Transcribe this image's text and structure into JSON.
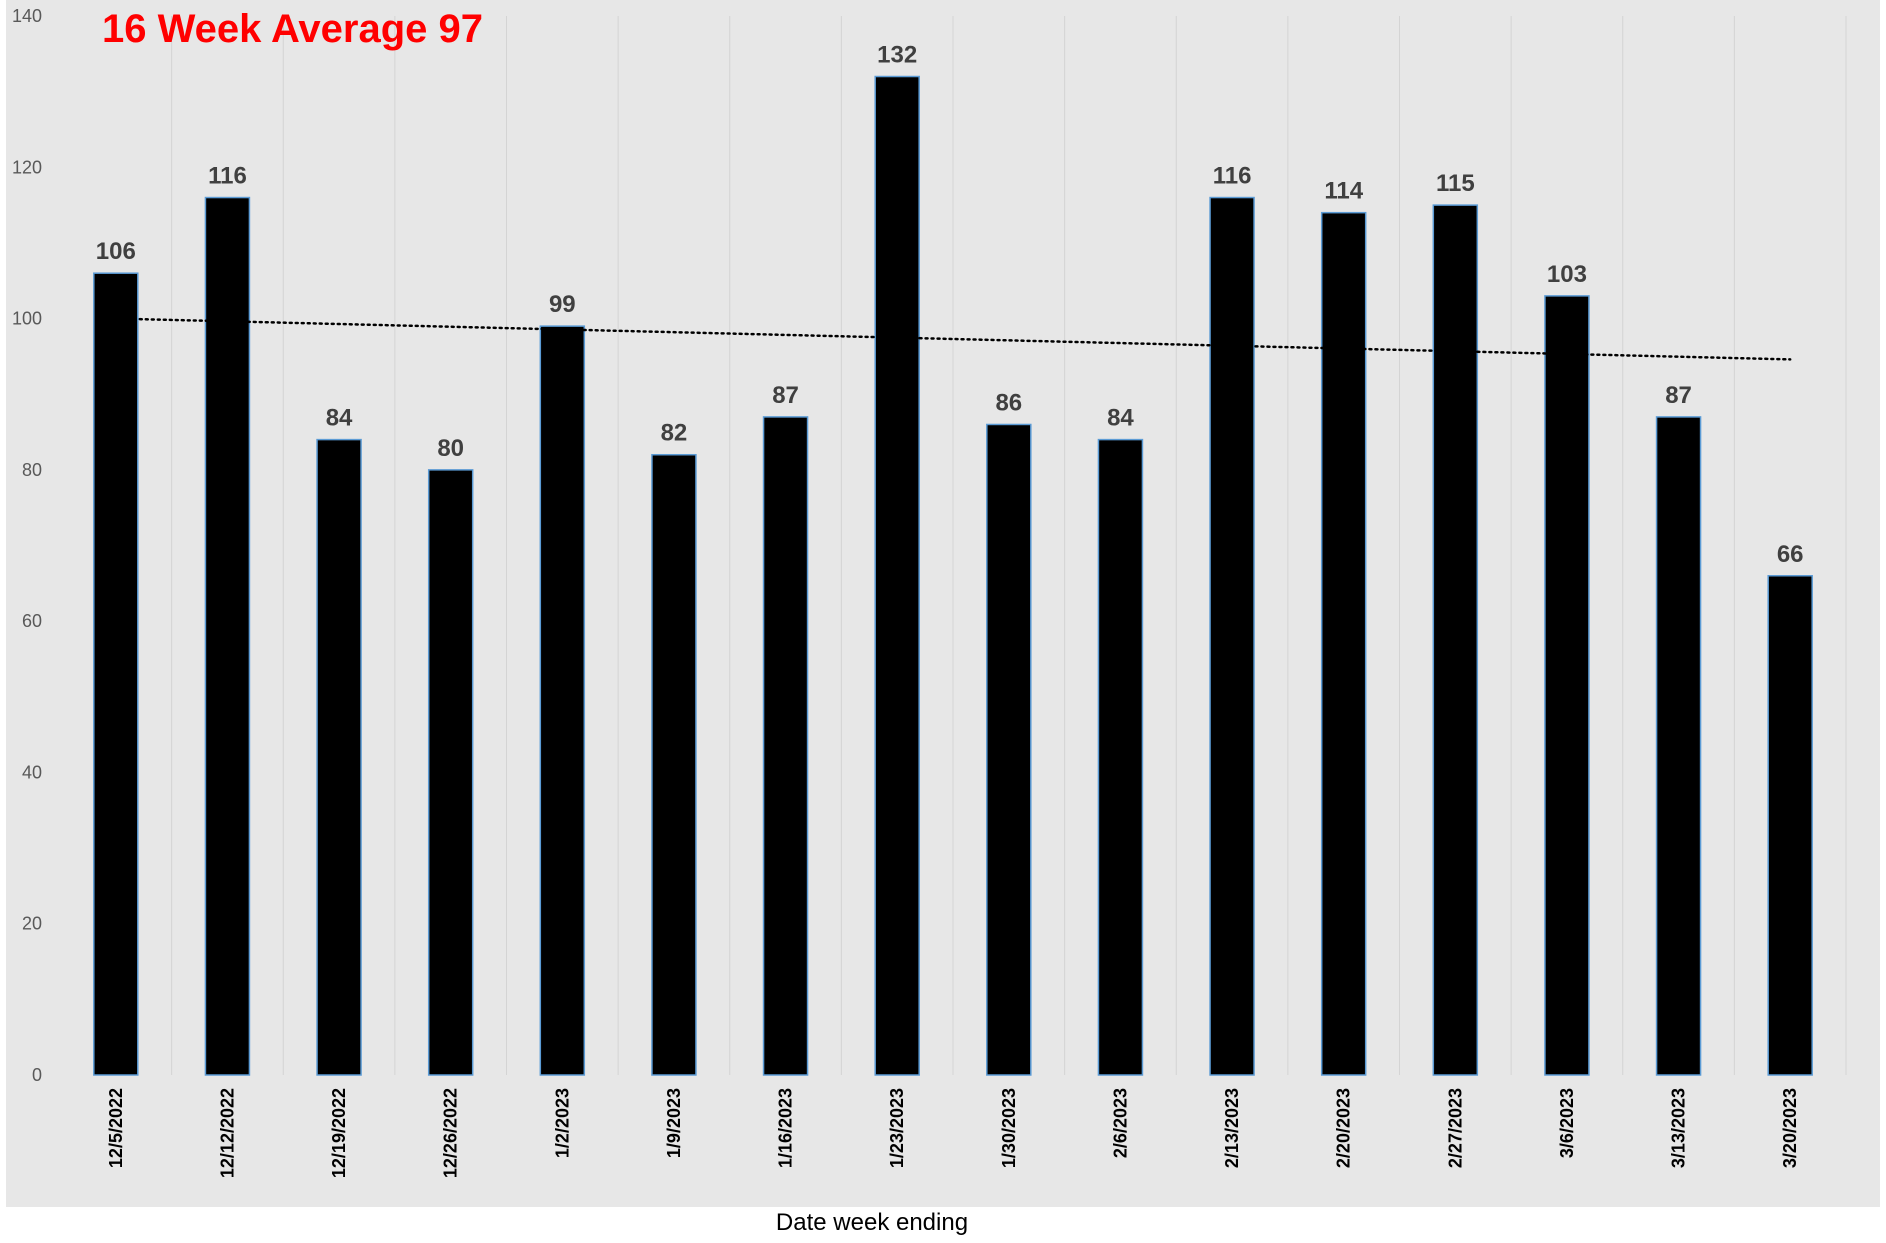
{
  "chart_data": {
    "type": "bar",
    "title": "16 Week Average 97",
    "xlabel": "Date week ending",
    "ylabel": "",
    "ylim": [
      0,
      140
    ],
    "yticks": [
      0,
      20,
      40,
      60,
      80,
      100,
      120,
      140
    ],
    "categories": [
      "12/5/2022",
      "12/12/2022",
      "12/19/2022",
      "12/26/2022",
      "1/2/2023",
      "1/9/2023",
      "1/16/2023",
      "1/23/2023",
      "1/30/2023",
      "2/6/2023",
      "2/13/2023",
      "2/20/2023",
      "2/27/2023",
      "3/6/2023",
      "3/13/2023",
      "3/20/2023"
    ],
    "values": [
      106,
      116,
      84,
      80,
      99,
      82,
      87,
      132,
      86,
      84,
      116,
      114,
      115,
      103,
      87,
      66
    ],
    "data_labels": [
      "106",
      "116",
      "84",
      "80",
      "99",
      "82",
      "87",
      "132",
      "86",
      "84",
      "116",
      "114",
      "115",
      "103",
      "87",
      "66"
    ],
    "trendline": {
      "type": "linear",
      "style": "dotted",
      "start": 100,
      "end": 94.6
    },
    "grid": {
      "vertical": true,
      "horizontal": false
    },
    "legend": "none",
    "colors": {
      "plot_background": "#e7e7e7",
      "bar_fill": "#000000",
      "bar_edge": "#5b9bd5",
      "title": "#ff0000",
      "trendline": "#000000",
      "grid": "#d4d4d4"
    }
  }
}
